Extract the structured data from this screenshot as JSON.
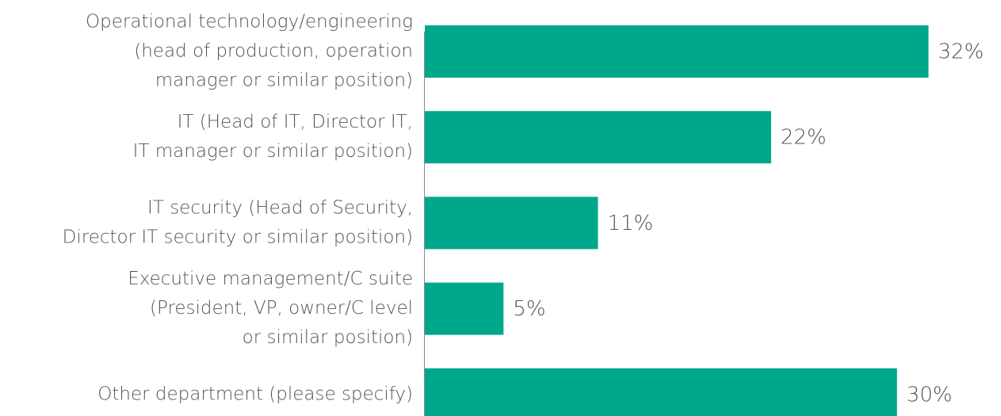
{
  "chart_data": {
    "type": "hbar",
    "categories": [
      [
        "Operational technology/engineering",
        "(head of production, operation",
        "manager or similar position)"
      ],
      [
        "IT (Head of IT, Director IT,",
        "IT manager or similar position)"
      ],
      [
        "IT security (Head of Security,",
        "Director IT security or similar position)"
      ],
      [
        "Executive management/C suite",
        "(President, VP, owner/C level",
        "or similar position)"
      ],
      [
        "Other department (please specify)"
      ]
    ],
    "values": [
      32,
      22,
      11,
      5,
      30
    ],
    "value_labels": [
      "32%",
      "22%",
      "11%",
      "5%",
      "30%"
    ],
    "color": "#00a88b"
  }
}
